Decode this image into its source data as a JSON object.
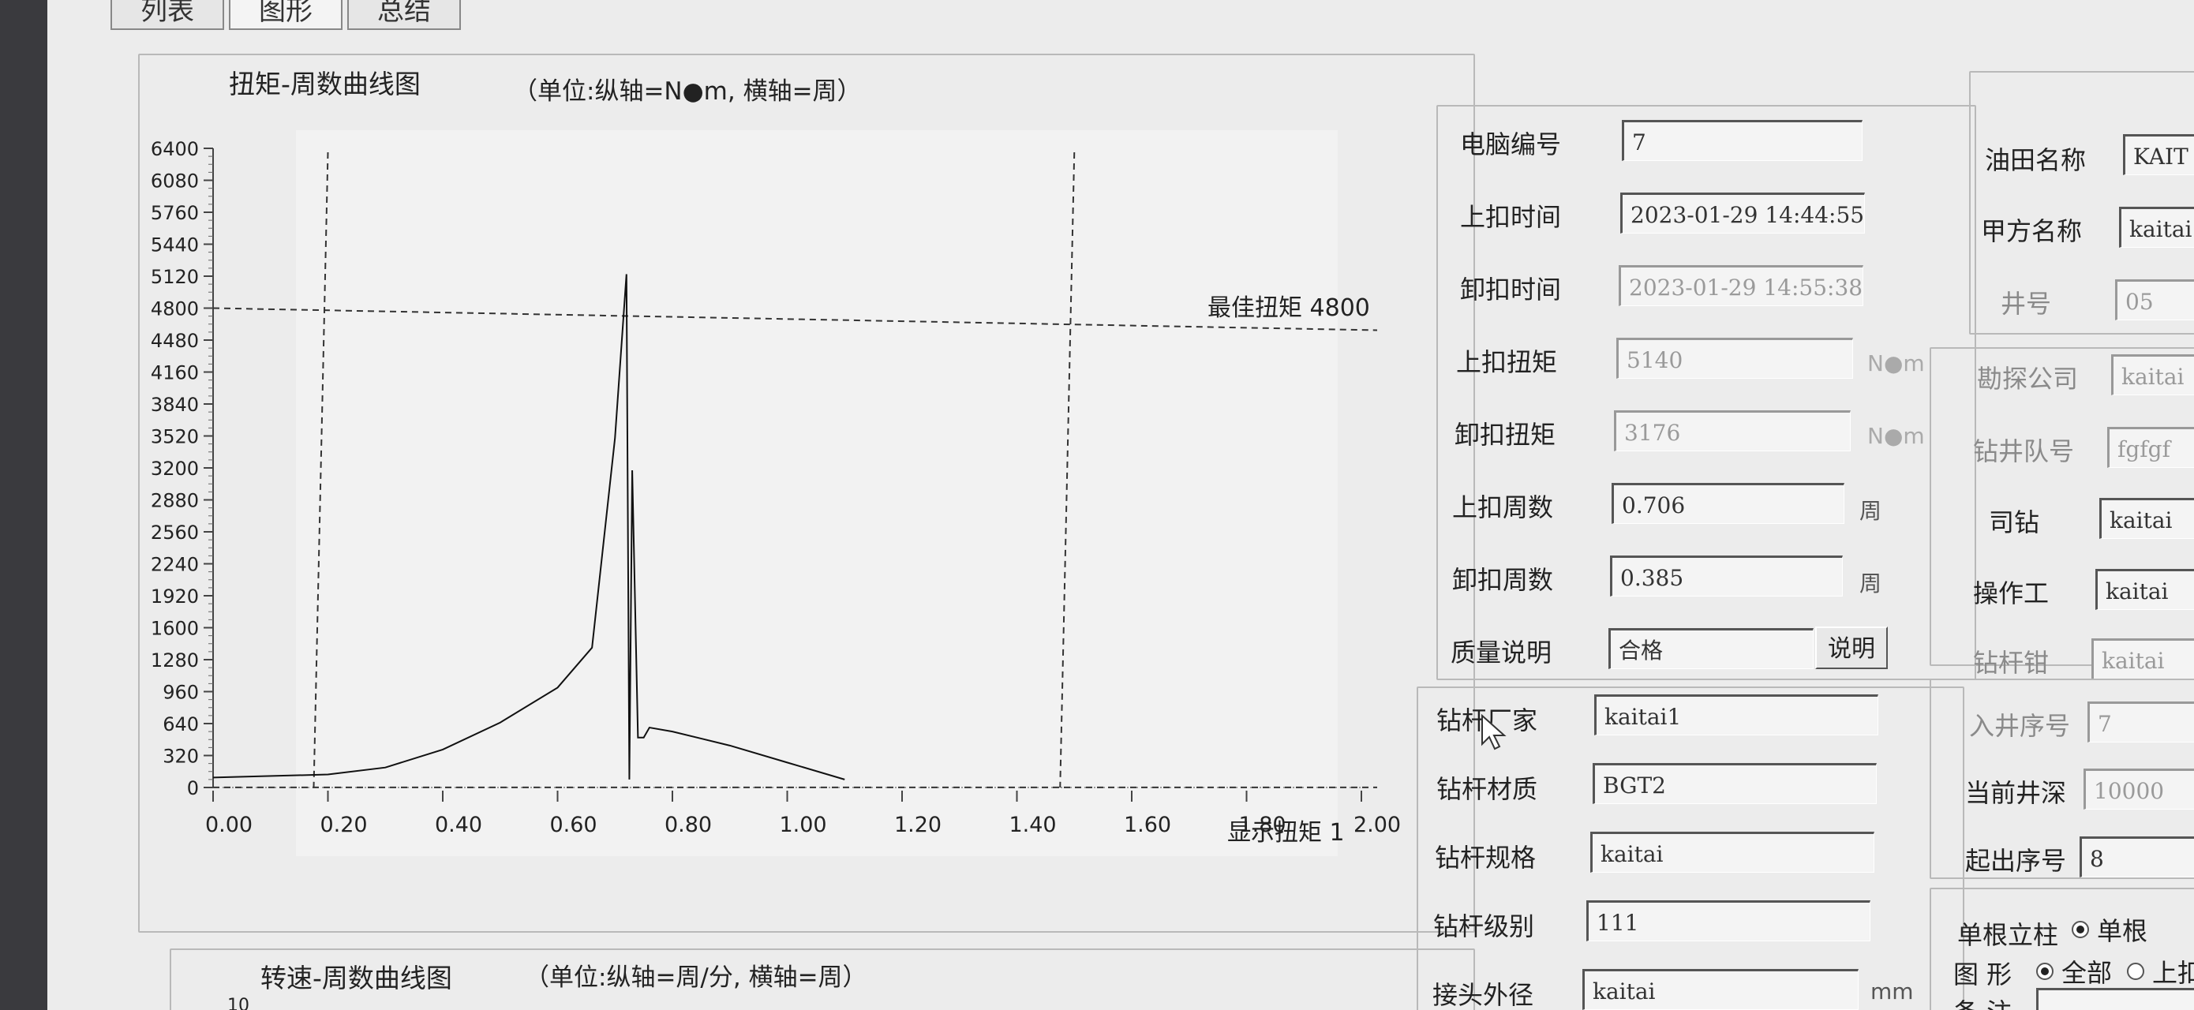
{
  "tabs": [
    "列表",
    "图形",
    "总结"
  ],
  "chart1": {
    "title": "扭矩-周数曲线图",
    "unit_note": "（单位:纵轴=N●m, 横轴=周）",
    "best_torque_label": "最佳扭矩 4800",
    "display_torque_label": "显示扭矩 1"
  },
  "chart2": {
    "title": "转速-周数曲线图",
    "unit_note": "（单位:纵轴=周/分, 横轴=周）",
    "y_top_label": "10"
  },
  "chart_data": {
    "type": "line",
    "title": "扭矩-周数曲线图",
    "xlim": [
      0,
      2.0
    ],
    "ylim": [
      0,
      6400
    ],
    "x_ticks": [
      "0.00",
      "0.20",
      "0.40",
      "0.60",
      "0.80",
      "1.00",
      "1.20",
      "1.40",
      "1.60",
      "1.80",
      "2.00"
    ],
    "y_ticks": [
      "0",
      "320",
      "640",
      "960",
      "1280",
      "1600",
      "1920",
      "2240",
      "2560",
      "2880",
      "3200",
      "3520",
      "3840",
      "4160",
      "4480",
      "4800",
      "5120",
      "5440",
      "5760",
      "6080",
      "6400"
    ],
    "series": [
      {
        "x": [
          0.0,
          0.2,
          0.3,
          0.4,
          0.5,
          0.6,
          0.66,
          0.7,
          0.72,
          0.725,
          0.73,
          0.74,
          0.75,
          0.76,
          0.8,
          0.9,
          1.0,
          1.1
        ],
        "y": [
          100,
          130,
          200,
          380,
          650,
          1000,
          1400,
          3500,
          5140,
          80,
          3176,
          500,
          500,
          600,
          560,
          420,
          250,
          80
        ]
      }
    ],
    "reference_lines": {
      "horizontal": [
        4800,
        1
      ],
      "vertical": [
        0.2,
        1.5
      ]
    },
    "grid": false
  },
  "panel1": {
    "computer_no": {
      "label": "电脑编号",
      "value": "7"
    },
    "makeup_time": {
      "label": "上扣时间",
      "value": "2023-01-29 14:44:55"
    },
    "breakout_time": {
      "label": "卸扣时间",
      "value": "2023-01-29 14:55:38"
    },
    "makeup_torque": {
      "label": "上扣扭矩",
      "value": "5140",
      "unit": "N●m"
    },
    "breakout_torque": {
      "label": "卸扣扭矩",
      "value": "3176",
      "unit": "N●m"
    },
    "makeup_turns": {
      "label": "上扣周数",
      "value": "0.706",
      "unit": "周"
    },
    "breakout_turns": {
      "label": "卸扣周数",
      "value": "0.385",
      "unit": "周"
    },
    "quality": {
      "label": "质量说明",
      "value": "合格",
      "button": "说明"
    }
  },
  "panel2": {
    "maker": {
      "label": "钻杆厂家",
      "value": "kaitai1"
    },
    "material": {
      "label": "钻杆材质",
      "value": "BGT2"
    },
    "spec": {
      "label": "钻杆规格",
      "value": "kaitai"
    },
    "grade": {
      "label": "钻杆级别",
      "value": "111"
    },
    "od": {
      "label": "接头外径",
      "value": "kaitai",
      "unit": "mm"
    }
  },
  "panel3": {
    "oilfield": {
      "label": "油田名称",
      "value": "KAIT"
    },
    "party_a": {
      "label": "甲方名称",
      "value": "kaitai"
    },
    "well_no": {
      "label": "井号",
      "value": "05"
    },
    "exploration": {
      "label": "勘探公司",
      "value": "kaitai"
    },
    "crew": {
      "label": "钻井队号",
      "value": "fgfgf"
    },
    "driller": {
      "label": "司钻",
      "value": "kaitai"
    },
    "operator": {
      "label": "操作工",
      "value": "kaitai"
    },
    "tong": {
      "label": "钻杆钳",
      "value": "kaitai"
    },
    "seq_in": {
      "label": "入井序号",
      "value": "7"
    },
    "depth": {
      "label": "当前井深",
      "value": "10000"
    },
    "seq_out": {
      "label": "起出序号",
      "value": "8"
    },
    "stand": {
      "label": "单根立柱",
      "option": "单根"
    },
    "graph": {
      "label": "图 形",
      "option_all": "全部",
      "option_makeup": "上扣"
    },
    "remark": {
      "label": "备 注"
    }
  }
}
